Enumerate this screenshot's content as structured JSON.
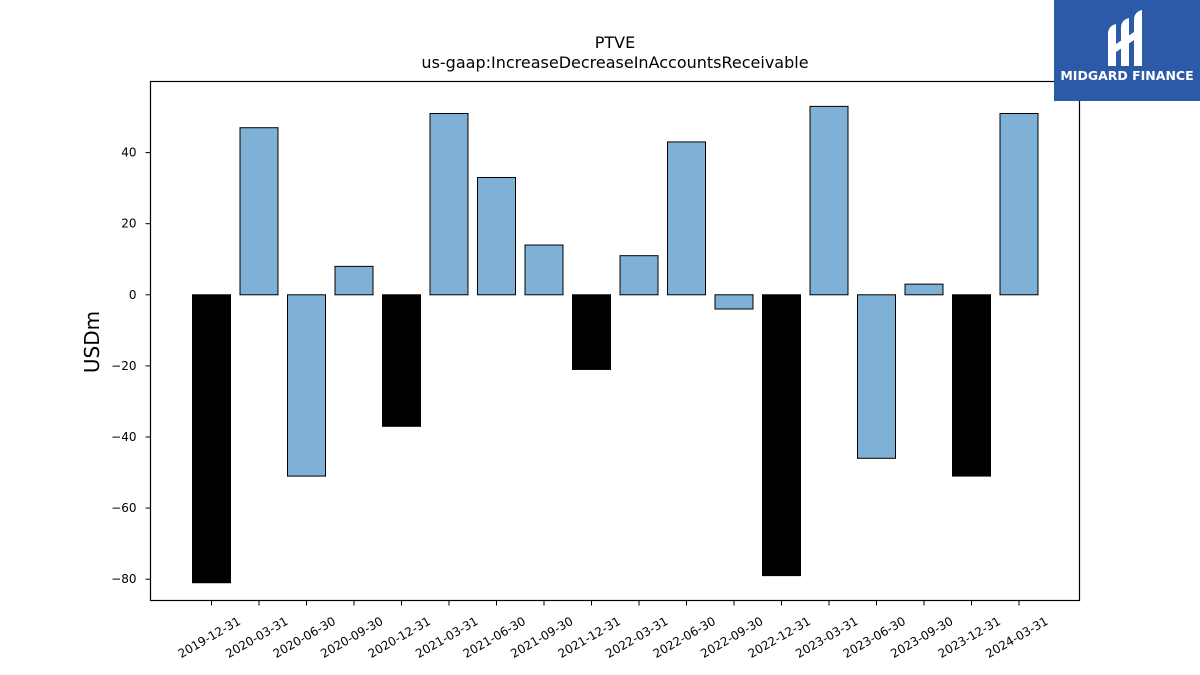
{
  "brand": {
    "name": "MIDGARD FINANCE",
    "mark_icon": "midgard-logo-icon",
    "bg_color": "#2c5aa8"
  },
  "chart_data": {
    "type": "bar",
    "title": "PTVE",
    "subtitle": "us-gaap:IncreaseDecreaseInAccountsReceivable",
    "xlabel": "",
    "ylabel": "USDm",
    "ylim": [
      -86,
      60
    ],
    "yticks": [
      40,
      20,
      0,
      -20,
      -40,
      -60,
      -80
    ],
    "ytick_labels": [
      "40",
      "20",
      "0",
      "−20",
      "−40",
      "−60",
      "−80"
    ],
    "grid": false,
    "categories": [
      "2019-12-31",
      "2020-03-31",
      "2020-06-30",
      "2020-09-30",
      "2020-12-31",
      "2021-03-31",
      "2021-06-30",
      "2021-09-30",
      "2021-12-31",
      "2022-03-31",
      "2022-06-30",
      "2022-09-30",
      "2022-12-31",
      "2023-03-31",
      "2023-06-30",
      "2023-09-30",
      "2023-12-31",
      "2024-03-31"
    ],
    "values": [
      -81,
      47,
      -51,
      8,
      -37,
      51,
      33,
      14,
      -21,
      11,
      43,
      -4,
      -79,
      53,
      -46,
      3,
      -51,
      51
    ],
    "bar_colors": [
      "#000000",
      "#7fb0d5",
      "#7fb0d5",
      "#7fb0d5",
      "#000000",
      "#7fb0d5",
      "#7fb0d5",
      "#7fb0d5",
      "#000000",
      "#7fb0d5",
      "#7fb0d5",
      "#7fb0d5",
      "#000000",
      "#7fb0d5",
      "#7fb0d5",
      "#7fb0d5",
      "#000000",
      "#7fb0d5"
    ]
  }
}
